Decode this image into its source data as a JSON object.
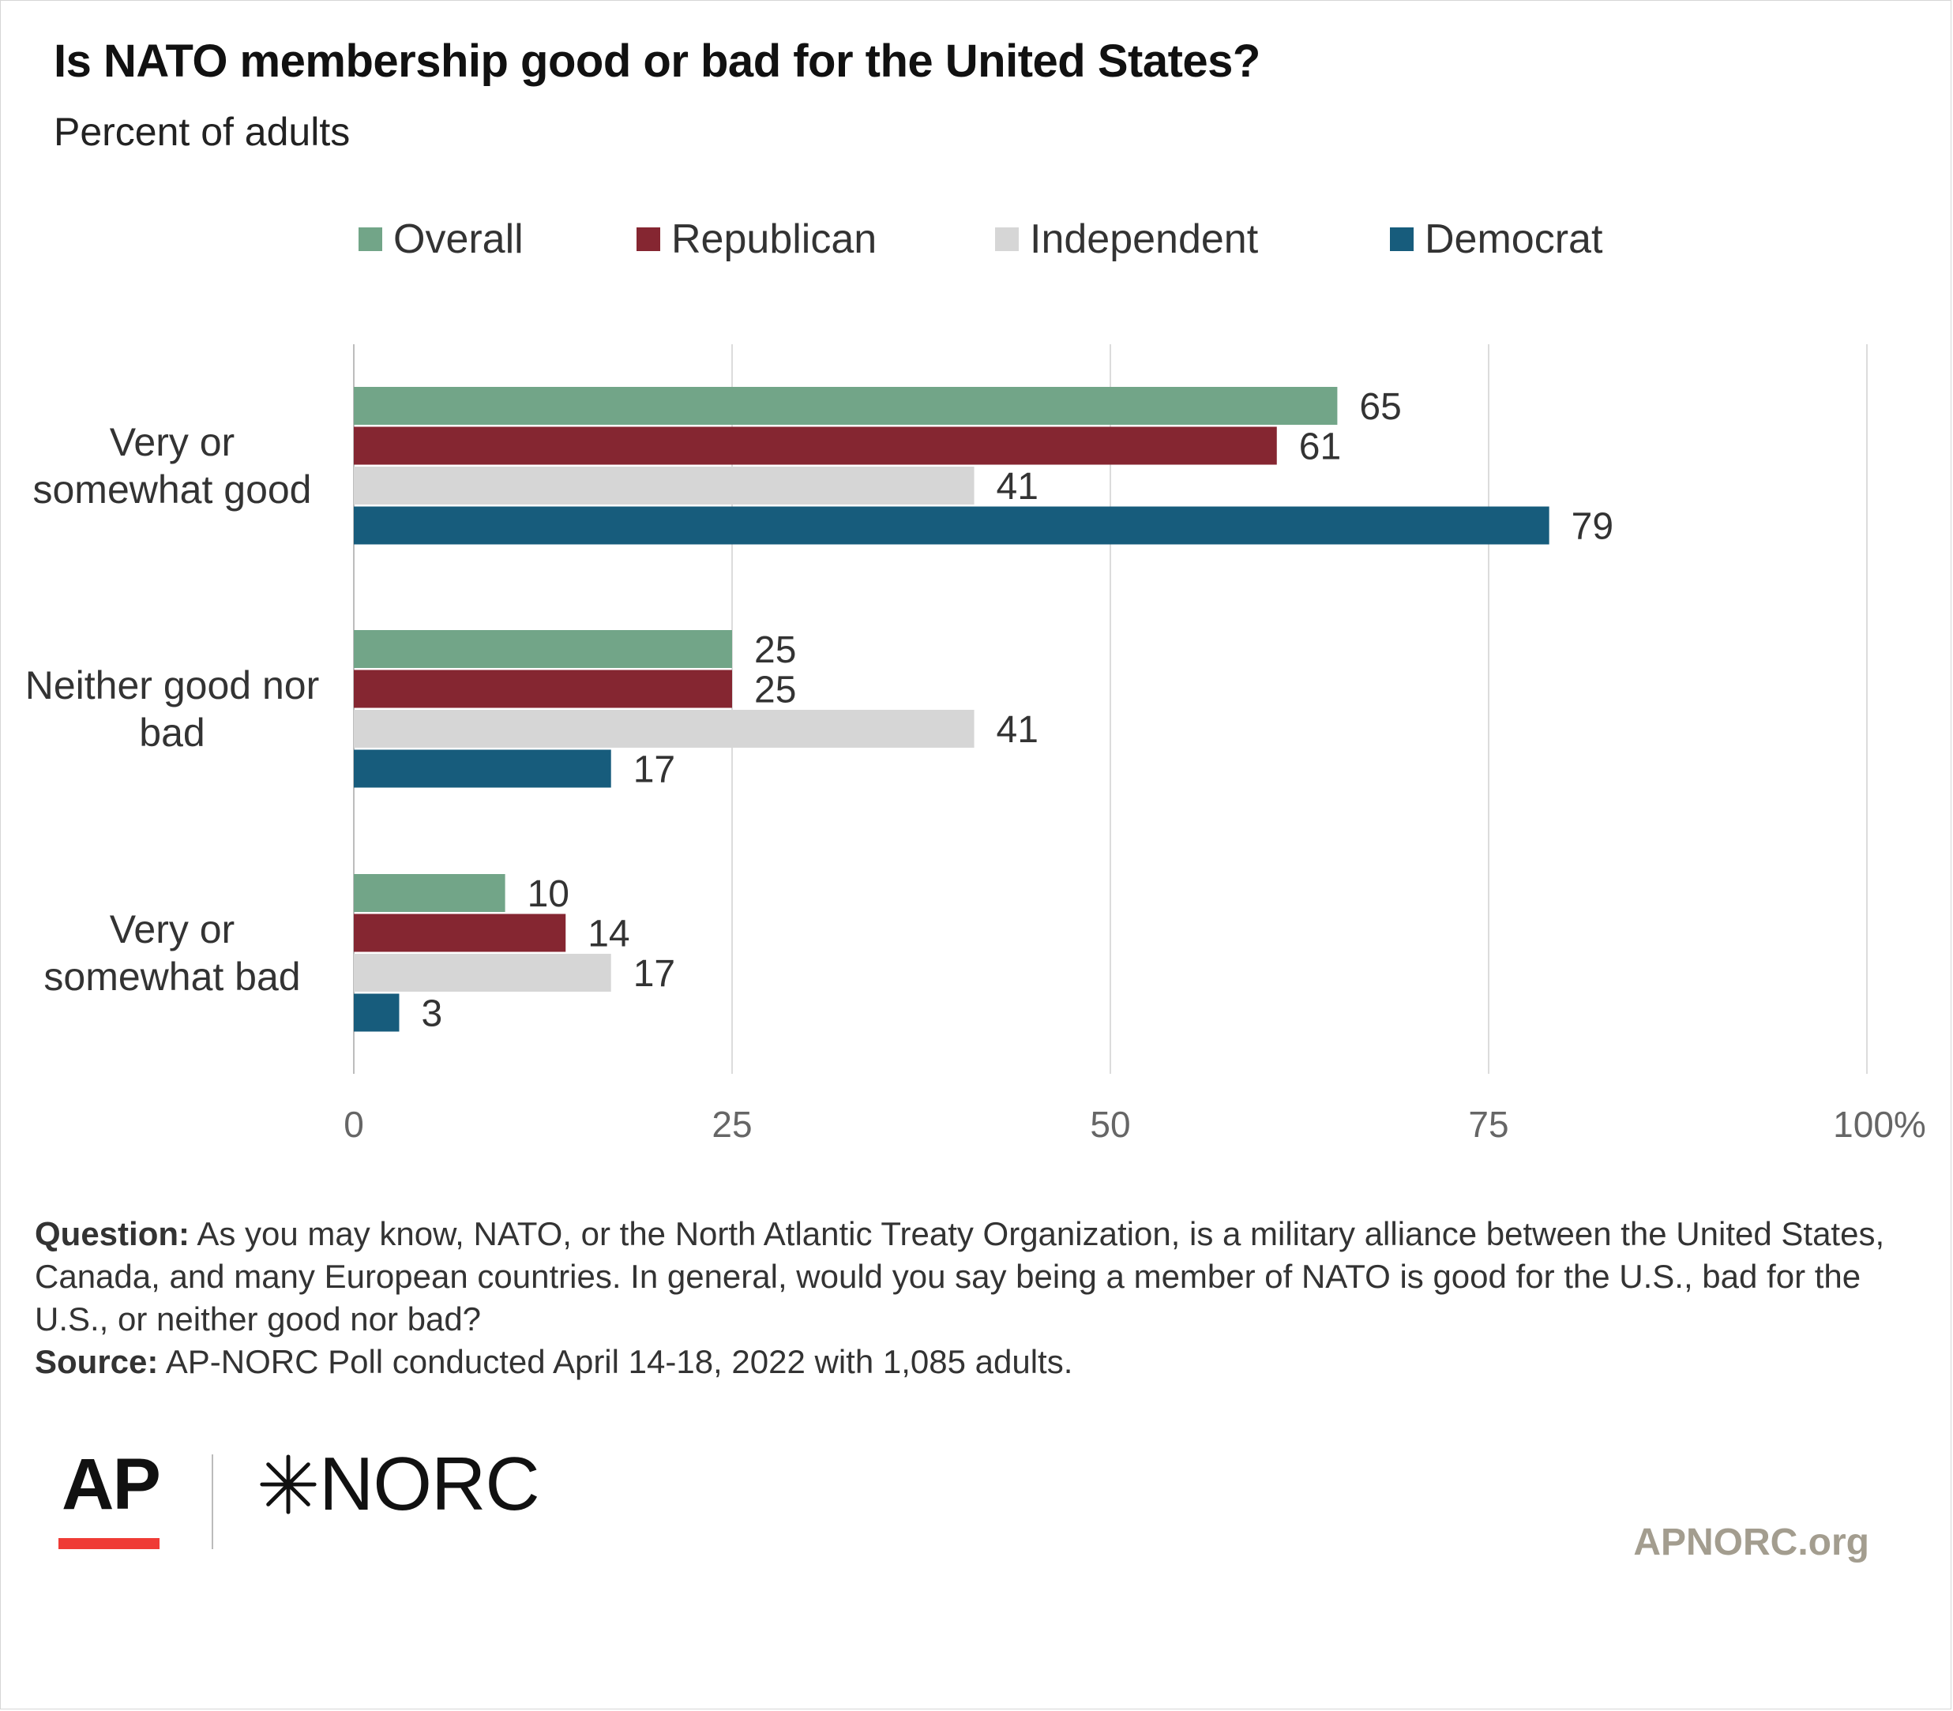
{
  "title": "Is NATO membership good or bad for the United States?",
  "subtitle": "Percent of adults",
  "chart_data": {
    "type": "bar",
    "orientation": "horizontal",
    "categories": [
      [
        "Very or",
        "somewhat good"
      ],
      [
        "Neither good nor",
        "bad"
      ],
      [
        "Very or",
        "somewhat bad"
      ]
    ],
    "series": [
      {
        "name": "Overall",
        "color": "#72a588",
        "values": [
          65,
          25,
          10
        ]
      },
      {
        "name": "Republican",
        "color": "#852631",
        "values": [
          61,
          25,
          14
        ]
      },
      {
        "name": "Independent",
        "color": "#d6d6d6",
        "values": [
          41,
          41,
          17
        ]
      },
      {
        "name": "Democrat",
        "color": "#175c7c",
        "values": [
          79,
          17,
          3
        ]
      }
    ],
    "xlim": [
      0,
      100
    ],
    "ticks": [
      0,
      25,
      50,
      75,
      100
    ],
    "tick_labels": [
      "0",
      "25",
      "50",
      "75",
      "100%"
    ],
    "grid": true,
    "legend": "top"
  },
  "notes": {
    "question_label": "Question:",
    "question_text": " As you may know, NATO, or the North Atlantic Treaty Organization, is a military alliance between the United States, Canada, and many European countries. In general, would you say being a member of NATO is good for the U.S., bad for the U.S., or neither good nor bad?",
    "source_label": "Source:",
    "source_text": " AP-NORC Poll conducted April 14-18, 2022 with 1,085 adults."
  },
  "branding": {
    "ap": "AP",
    "norc": "NORC",
    "url": "APNORC.org",
    "ap_accent": "#ef3b36",
    "url_color": "#a39d8f"
  }
}
